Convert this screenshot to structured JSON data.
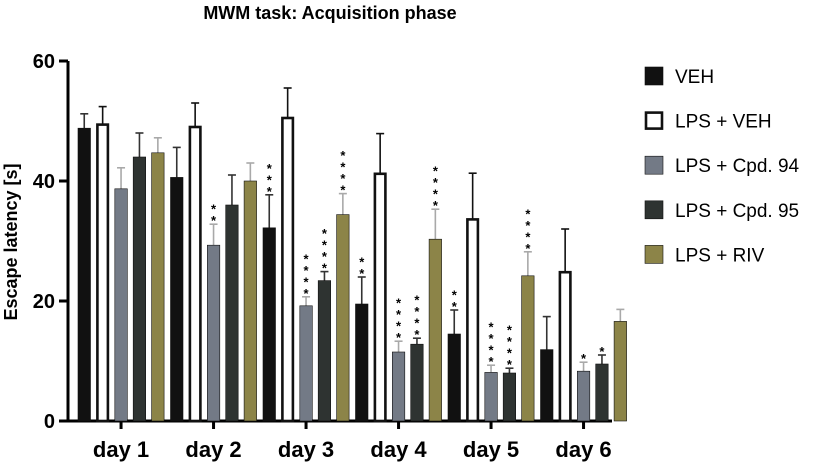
{
  "chart_data": {
    "type": "bar",
    "title": "MWM task: Acquisition phase",
    "xlabel": "",
    "ylabel": "Escape latency [s]",
    "ylim": [
      0,
      60
    ],
    "yticks": [
      "0",
      "20",
      "40",
      "60"
    ],
    "categories": [
      "day 1",
      "day 2",
      "day 3",
      "day 4",
      "day 5",
      "day 6"
    ],
    "series": [
      {
        "name": "VEH",
        "color": "#111111",
        "pattern": "solid",
        "values": [
          48.8,
          40.6,
          32.2,
          19.5,
          14.5,
          11.9
        ],
        "errors": [
          2.4,
          5.0,
          5.5,
          4.5,
          4.0,
          5.5
        ],
        "stars": [
          "",
          "",
          "",
          "",
          "",
          ""
        ]
      },
      {
        "name": "LPS + VEH",
        "color": "#ffffff",
        "pattern": "hollow",
        "values": [
          49.4,
          49.0,
          50.5,
          41.2,
          33.6,
          24.8
        ],
        "errors": [
          3.0,
          4.0,
          5.0,
          6.7,
          7.7,
          7.2
        ],
        "stars": [
          "",
          "",
          "",
          "",
          "",
          ""
        ]
      },
      {
        "name": "LPS + Cpd. 94",
        "color": "#737a86",
        "pattern": "solid",
        "values": [
          38.7,
          29.3,
          19.2,
          11.5,
          8.1,
          8.3
        ],
        "errors": [
          3.5,
          3.5,
          1.5,
          1.8,
          1.2,
          1.5
        ],
        "stars": [
          "",
          "**",
          "****",
          "****",
          "****",
          "*"
        ]
      },
      {
        "name": "LPS + Cpd. 95",
        "color": "#2e3331",
        "pattern": "solid",
        "values": [
          44.0,
          36.0,
          23.4,
          12.8,
          8.0,
          9.5
        ],
        "errors": [
          4.0,
          5.0,
          1.5,
          1.0,
          0.8,
          1.5
        ],
        "stars": [
          "",
          "",
          "****",
          "****",
          "****",
          "*"
        ]
      },
      {
        "name": "LPS + RIV",
        "color": "#8c8448",
        "pattern": "solid",
        "values": [
          44.7,
          40.0,
          34.4,
          30.3,
          24.2,
          16.6
        ],
        "errors": [
          2.5,
          3.0,
          3.5,
          5.0,
          4.0,
          2.0
        ],
        "stars": [
          "",
          "",
          "****",
          "****",
          "****",
          ""
        ]
      }
    ],
    "extra_stars": [
      {
        "series": "VEH",
        "day": "day 3",
        "text": "***"
      },
      {
        "series": "VEH",
        "day": "day 4",
        "text": "**"
      },
      {
        "series": "VEH",
        "day": "day 5",
        "text": "**"
      }
    ],
    "legend_position": "right"
  }
}
